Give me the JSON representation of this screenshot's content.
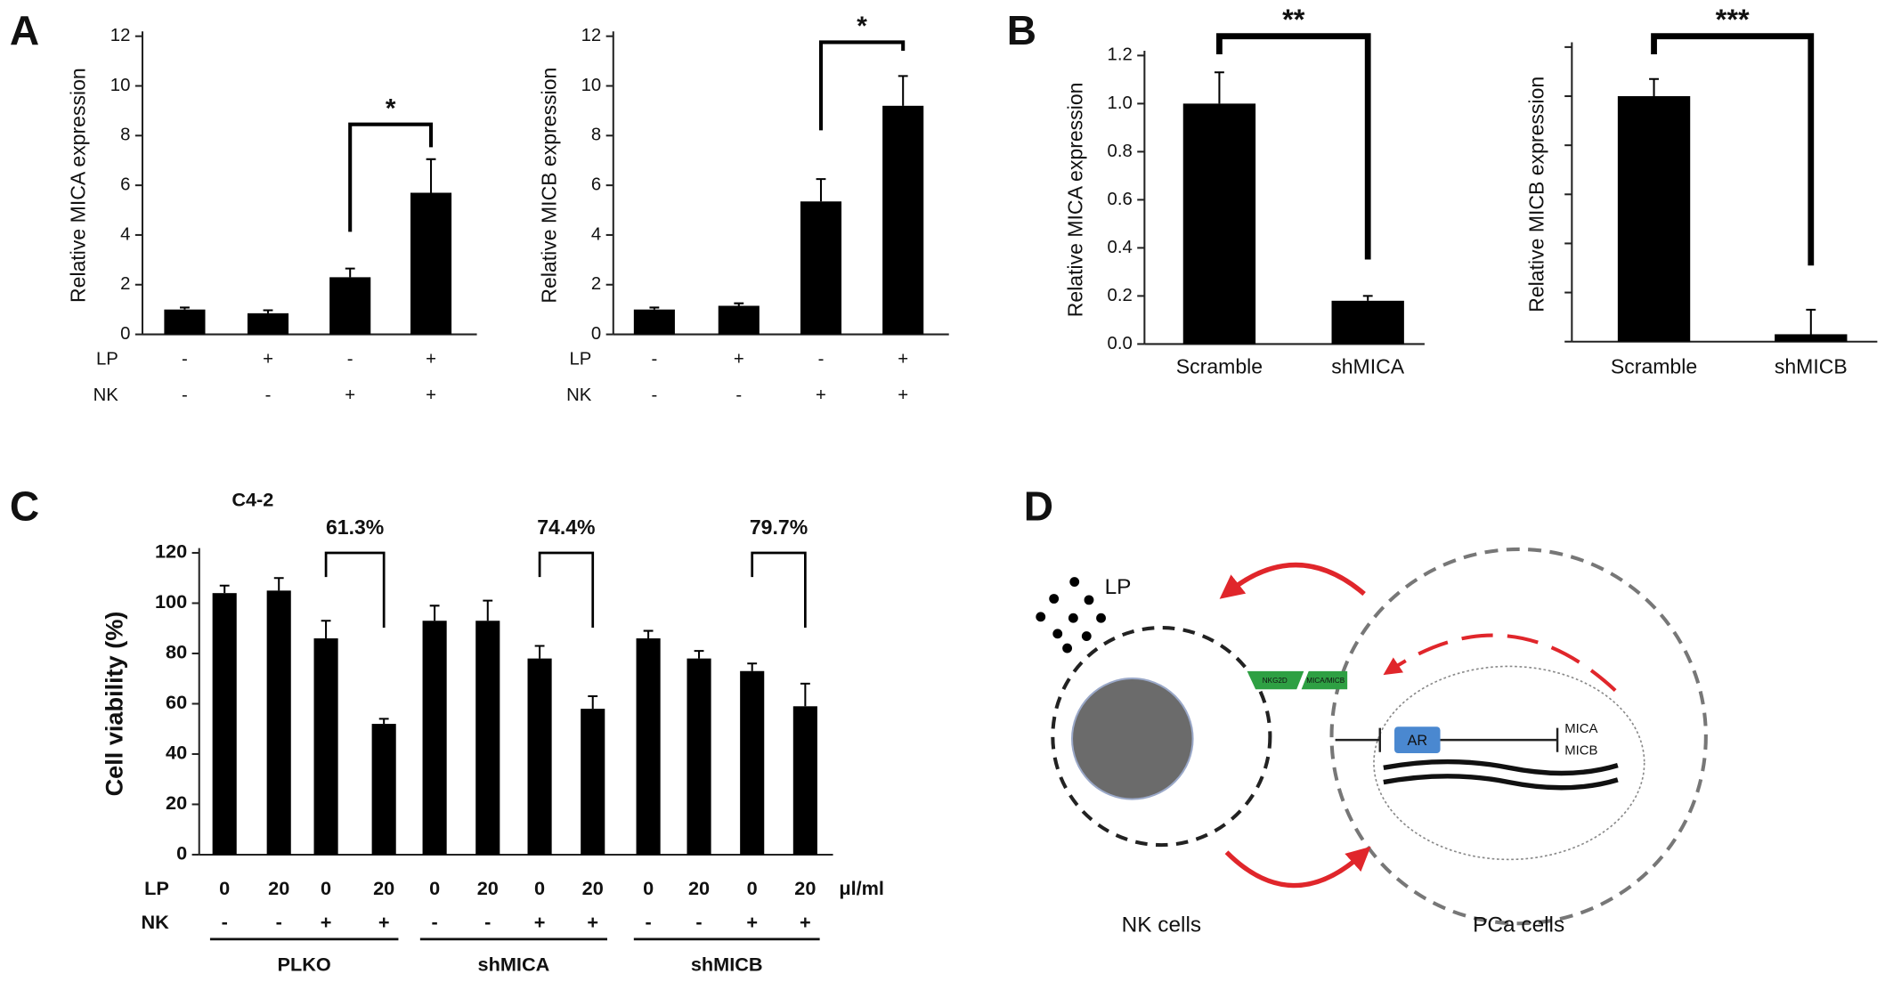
{
  "chart_data": [
    {
      "type": "bar",
      "panel": "A",
      "ylabel": "Relative MICA expression",
      "values": [
        1.0,
        0.85,
        2.3,
        5.7
      ],
      "errors": [
        0.08,
        0.12,
        0.35,
        1.35
      ],
      "color": "#000000",
      "rows": [
        {
          "name": "LP",
          "labels": [
            "-",
            "+",
            "-",
            "+"
          ]
        },
        {
          "name": "NK",
          "labels": [
            "-",
            "-",
            "+",
            "+"
          ]
        }
      ],
      "ylim": [
        0,
        12
      ],
      "yticks": [
        0,
        2,
        4,
        6,
        8,
        10,
        12
      ],
      "annotations": [
        {
          "text": "*",
          "bars": [
            2,
            3
          ]
        }
      ]
    },
    {
      "type": "bar",
      "ylabel": "Relative MICB expression",
      "values": [
        1.0,
        1.15,
        5.35,
        9.2
      ],
      "errors": [
        0.08,
        0.1,
        0.9,
        1.2
      ],
      "color": "#000000",
      "rows": [
        {
          "name": "LP",
          "labels": [
            "-",
            "+",
            "-",
            "+"
          ]
        },
        {
          "name": "NK",
          "labels": [
            "-",
            "-",
            "+",
            "+"
          ]
        }
      ],
      "ylim": [
        0,
        12
      ],
      "yticks": [
        0,
        2,
        4,
        6,
        8,
        10,
        12
      ],
      "annotations": [
        {
          "text": "*",
          "bars": [
            2,
            3
          ]
        }
      ]
    },
    {
      "type": "bar",
      "panel": "B",
      "ylabel": "Relative MICA expression",
      "categories": [
        "Scramble",
        "shMICA"
      ],
      "values": [
        1.0,
        0.18
      ],
      "errors": [
        0.13,
        0.02
      ],
      "color": "#000000",
      "ylim": [
        0,
        1.2
      ],
      "yticks": [
        {
          "value": 0,
          "label": "0.0"
        },
        0.2,
        0.4,
        0.6,
        0.8,
        {
          "value": 1,
          "label": "1.0"
        },
        1.2
      ],
      "annotations": [
        {
          "text": "**",
          "bars": [
            0,
            1
          ]
        }
      ]
    },
    {
      "type": "bar",
      "ylabel": "Relative MICB expression",
      "categories": [
        "Scramble",
        "shMICB"
      ],
      "values": [
        1.0,
        0.03
      ],
      "errors": [
        0.07,
        0.1
      ],
      "color": "#000000",
      "ylim": [
        0,
        1.2
      ],
      "yticks": [
        0,
        0.2,
        0.4,
        0.6,
        0.8,
        1,
        1.2
      ],
      "tick_labels": false,
      "annotations": [
        {
          "text": "***",
          "bars": [
            0,
            1
          ]
        }
      ]
    },
    {
      "type": "bar",
      "panel": "C",
      "subtitle": "C4-2",
      "ylabel": "Cell viability (%)",
      "values": [
        104,
        105,
        86,
        52,
        93,
        93,
        78,
        58,
        86,
        78,
        73,
        59
      ],
      "errors": [
        3,
        5,
        7,
        2,
        6,
        8,
        5,
        5,
        3,
        3,
        3,
        9
      ],
      "color": "#000000",
      "rows": [
        {
          "name": "LP",
          "labels": [
            "0",
            "20",
            "0",
            "20",
            "0",
            "20",
            "0",
            "20",
            "0",
            "20",
            "0",
            "20"
          ],
          "unit": "μl/ml"
        },
        {
          "name": "NK",
          "labels": [
            "-",
            "-",
            "+",
            "+",
            "-",
            "-",
            "+",
            "+",
            "-",
            "-",
            "+",
            "+"
          ]
        }
      ],
      "groups": [
        "PLKO",
        "shMICA",
        "shMICB"
      ],
      "ylim": [
        0,
        120
      ],
      "yticks": [
        0,
        20,
        40,
        60,
        80,
        100,
        120
      ],
      "annotations": [
        {
          "text": "61.3%",
          "bars": [
            2,
            3
          ]
        },
        {
          "text": "74.4%",
          "bars": [
            6,
            7
          ]
        },
        {
          "text": "79.7%",
          "bars": [
            10,
            11
          ]
        }
      ]
    }
  ],
  "diagram": {
    "panel": "D",
    "ligand": "LP",
    "receptor": "NKG2D",
    "ligand_label": "MICA/MICB",
    "gene": "AR",
    "targets": [
      "MICA",
      "MICB"
    ],
    "left_cell": "NK cells",
    "right_cell": "PCa cells"
  }
}
